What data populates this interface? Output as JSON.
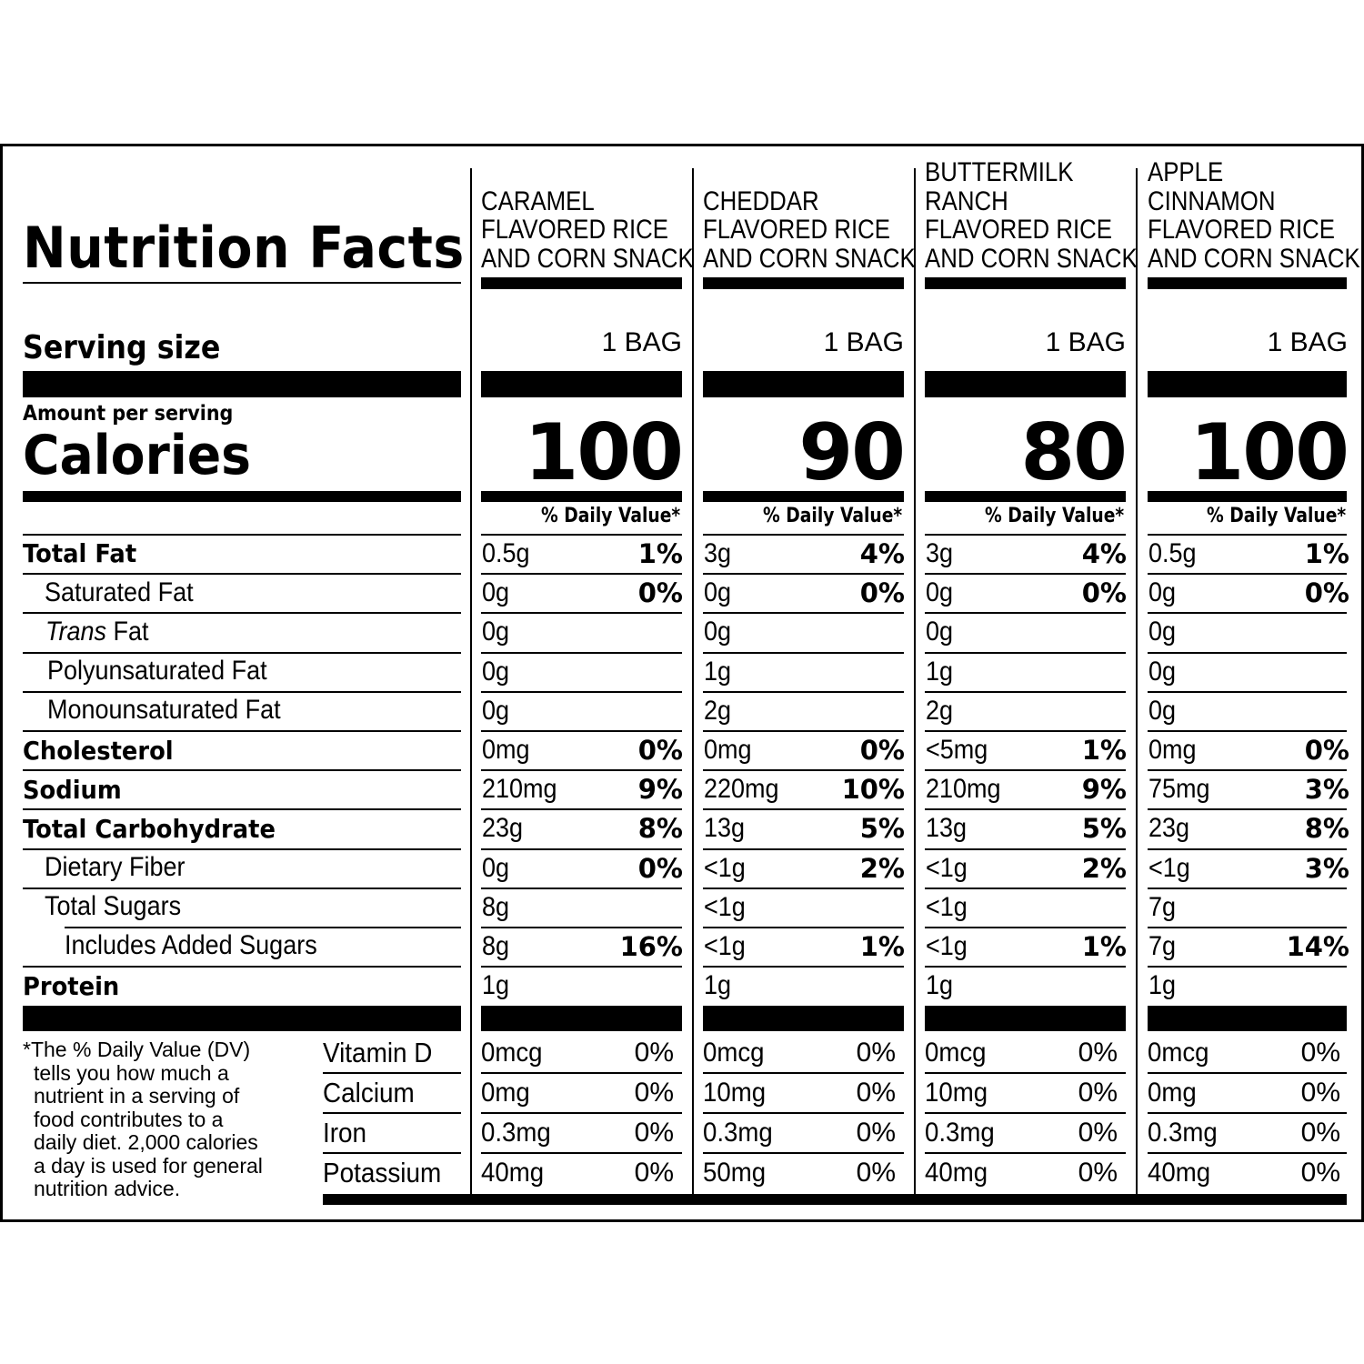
{
  "label": {
    "title": "Nutrition Facts",
    "serving_size_label": "Serving size",
    "amount_per_serving_label": "Amount per serving",
    "calories_label": "Calories",
    "daily_value_header": "% Daily Value*"
  },
  "products": [
    {
      "name_lines": [
        "",
        "CARAMEL",
        "FLAVORED RICE",
        "AND CORN SNACK"
      ],
      "serving_size": "1 BAG",
      "calories": "100",
      "nutrients": {
        "total_fat": {
          "amount": "0.5g",
          "dv": "1%"
        },
        "saturated_fat": {
          "amount": "0g",
          "dv": "0%"
        },
        "trans_fat": {
          "amount": "0g",
          "dv": ""
        },
        "polyunsaturated_fat": {
          "amount": "0g",
          "dv": ""
        },
        "monounsaturated_fat": {
          "amount": "0g",
          "dv": ""
        },
        "cholesterol": {
          "amount": "0mg",
          "dv": "0%"
        },
        "sodium": {
          "amount": "210mg",
          "dv": "9%"
        },
        "total_carbohydrate": {
          "amount": "23g",
          "dv": "8%"
        },
        "dietary_fiber": {
          "amount": "0g",
          "dv": "0%"
        },
        "total_sugars": {
          "amount": "8g",
          "dv": ""
        },
        "added_sugars": {
          "amount": "8g",
          "dv": "16%"
        },
        "protein": {
          "amount": "1g",
          "dv": ""
        }
      },
      "vitamins": {
        "vitamin_d": {
          "amount": "0mcg",
          "dv": "0%"
        },
        "calcium": {
          "amount": "0mg",
          "dv": "0%"
        },
        "iron": {
          "amount": "0.3mg",
          "dv": "0%"
        },
        "potassium": {
          "amount": "40mg",
          "dv": "0%"
        }
      }
    },
    {
      "name_lines": [
        "",
        "CHEDDAR",
        "FLAVORED RICE",
        "AND CORN SNACK"
      ],
      "serving_size": "1 BAG",
      "calories": "90",
      "nutrients": {
        "total_fat": {
          "amount": "3g",
          "dv": "4%"
        },
        "saturated_fat": {
          "amount": "0g",
          "dv": "0%"
        },
        "trans_fat": {
          "amount": "0g",
          "dv": ""
        },
        "polyunsaturated_fat": {
          "amount": "1g",
          "dv": ""
        },
        "monounsaturated_fat": {
          "amount": "2g",
          "dv": ""
        },
        "cholesterol": {
          "amount": "0mg",
          "dv": "0%"
        },
        "sodium": {
          "amount": "220mg",
          "dv": "10%"
        },
        "total_carbohydrate": {
          "amount": "13g",
          "dv": "5%"
        },
        "dietary_fiber": {
          "amount": "<1g",
          "dv": "2%"
        },
        "total_sugars": {
          "amount": "<1g",
          "dv": ""
        },
        "added_sugars": {
          "amount": "<1g",
          "dv": "1%"
        },
        "protein": {
          "amount": "1g",
          "dv": ""
        }
      },
      "vitamins": {
        "vitamin_d": {
          "amount": "0mcg",
          "dv": "0%"
        },
        "calcium": {
          "amount": "10mg",
          "dv": "0%"
        },
        "iron": {
          "amount": "0.3mg",
          "dv": "0%"
        },
        "potassium": {
          "amount": "50mg",
          "dv": "0%"
        }
      }
    },
    {
      "name_lines": [
        "BUTTERMILK",
        "RANCH",
        "FLAVORED RICE",
        "AND CORN SNACK"
      ],
      "serving_size": "1 BAG",
      "calories": "80",
      "nutrients": {
        "total_fat": {
          "amount": "3g",
          "dv": "4%"
        },
        "saturated_fat": {
          "amount": "0g",
          "dv": "0%"
        },
        "trans_fat": {
          "amount": "0g",
          "dv": ""
        },
        "polyunsaturated_fat": {
          "amount": "1g",
          "dv": ""
        },
        "monounsaturated_fat": {
          "amount": "2g",
          "dv": ""
        },
        "cholesterol": {
          "amount": "<5mg",
          "dv": "1%"
        },
        "sodium": {
          "amount": "210mg",
          "dv": "9%"
        },
        "total_carbohydrate": {
          "amount": "13g",
          "dv": "5%"
        },
        "dietary_fiber": {
          "amount": "<1g",
          "dv": "2%"
        },
        "total_sugars": {
          "amount": "<1g",
          "dv": ""
        },
        "added_sugars": {
          "amount": "<1g",
          "dv": "1%"
        },
        "protein": {
          "amount": "1g",
          "dv": ""
        }
      },
      "vitamins": {
        "vitamin_d": {
          "amount": "0mcg",
          "dv": "0%"
        },
        "calcium": {
          "amount": "10mg",
          "dv": "0%"
        },
        "iron": {
          "amount": "0.3mg",
          "dv": "0%"
        },
        "potassium": {
          "amount": "40mg",
          "dv": "0%"
        }
      }
    },
    {
      "name_lines": [
        "APPLE",
        "CINNAMON",
        "FLAVORED RICE",
        "AND CORN SNACK"
      ],
      "serving_size": "1 BAG",
      "calories": "100",
      "nutrients": {
        "total_fat": {
          "amount": "0.5g",
          "dv": "1%"
        },
        "saturated_fat": {
          "amount": "0g",
          "dv": "0%"
        },
        "trans_fat": {
          "amount": "0g",
          "dv": ""
        },
        "polyunsaturated_fat": {
          "amount": "0g",
          "dv": ""
        },
        "monounsaturated_fat": {
          "amount": "0g",
          "dv": ""
        },
        "cholesterol": {
          "amount": "0mg",
          "dv": "0%"
        },
        "sodium": {
          "amount": "75mg",
          "dv": "3%"
        },
        "total_carbohydrate": {
          "amount": "23g",
          "dv": "8%"
        },
        "dietary_fiber": {
          "amount": "<1g",
          "dv": "3%"
        },
        "total_sugars": {
          "amount": "7g",
          "dv": ""
        },
        "added_sugars": {
          "amount": "7g",
          "dv": "14%"
        },
        "protein": {
          "amount": "1g",
          "dv": ""
        }
      },
      "vitamins": {
        "vitamin_d": {
          "amount": "0mcg",
          "dv": "0%"
        },
        "calcium": {
          "amount": "0mg",
          "dv": "0%"
        },
        "iron": {
          "amount": "0.3mg",
          "dv": "0%"
        },
        "potassium": {
          "amount": "40mg",
          "dv": "0%"
        }
      }
    }
  ],
  "nutrient_labels": {
    "total_fat": "Total Fat",
    "saturated_fat": "Saturated Fat",
    "trans_fat_italic": "Trans",
    "trans_fat_rest": " Fat",
    "polyunsaturated_fat": "Polyunsaturated Fat",
    "monounsaturated_fat": "Monounsaturated Fat",
    "cholesterol": "Cholesterol",
    "sodium": "Sodium",
    "total_carbohydrate": "Total Carbohydrate",
    "dietary_fiber": "Dietary Fiber",
    "total_sugars": "Total Sugars",
    "added_sugars": "Includes Added Sugars",
    "protein": "Protein"
  },
  "vitamin_labels": {
    "vitamin_d": "Vitamin D",
    "calcium": "Calcium",
    "iron": "Iron",
    "potassium": "Potassium"
  },
  "footnote": [
    "*The % Daily Value (DV)",
    "tells you how much a",
    "nutrient in a serving of",
    "food contributes to a",
    "daily diet. 2,000 calories",
    "a day is used for general",
    "nutrition advice."
  ]
}
